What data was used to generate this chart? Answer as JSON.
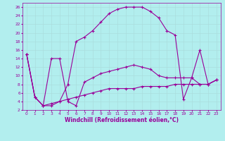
{
  "xlabel": "Windchill (Refroidissement éolien,°C)",
  "bg_color": "#b2eeee",
  "line_color": "#990099",
  "grid_color": "#aadddd",
  "xlim": [
    -0.5,
    23.5
  ],
  "ylim": [
    2,
    27
  ],
  "xticks": [
    0,
    1,
    2,
    3,
    4,
    5,
    6,
    7,
    8,
    9,
    10,
    11,
    12,
    13,
    14,
    15,
    16,
    17,
    18,
    19,
    20,
    21,
    22,
    23
  ],
  "yticks": [
    2,
    4,
    6,
    8,
    10,
    12,
    14,
    16,
    18,
    20,
    22,
    24,
    26
  ],
  "curve1_x": [
    0,
    1,
    2,
    3,
    4,
    5,
    6,
    7,
    8,
    9,
    10,
    11,
    12,
    13,
    14,
    15,
    16,
    17,
    18,
    19,
    20,
    21,
    22,
    23
  ],
  "curve1_y": [
    15,
    5,
    3,
    3,
    4,
    8,
    18,
    19,
    20.5,
    22.5,
    24.5,
    25.5,
    26,
    26,
    26,
    25,
    23.5,
    20.5,
    19.5,
    4.5,
    9.5,
    16,
    8,
    9
  ],
  "curve2_x": [
    0,
    1,
    2,
    3,
    4,
    5,
    6,
    7,
    8,
    9,
    10,
    11,
    12,
    13,
    14,
    15,
    16,
    17,
    18,
    19,
    20,
    21,
    22,
    23
  ],
  "curve2_y": [
    15,
    5,
    3,
    14,
    14,
    4,
    3,
    8.5,
    9.5,
    10.5,
    11,
    11.5,
    12,
    12.5,
    12,
    11.5,
    10,
    9.5,
    9.5,
    9.5,
    9.5,
    8,
    8,
    9
  ],
  "curve3_x": [
    0,
    1,
    2,
    3,
    4,
    5,
    6,
    7,
    8,
    9,
    10,
    11,
    12,
    13,
    14,
    15,
    16,
    17,
    18,
    19,
    20,
    21,
    22,
    23
  ],
  "curve3_y": [
    15,
    5,
    3,
    3.5,
    4,
    4.5,
    5,
    5.5,
    6,
    6.5,
    7,
    7,
    7,
    7,
    7.5,
    7.5,
    7.5,
    7.5,
    8,
    8,
    8,
    8,
    8,
    9
  ]
}
